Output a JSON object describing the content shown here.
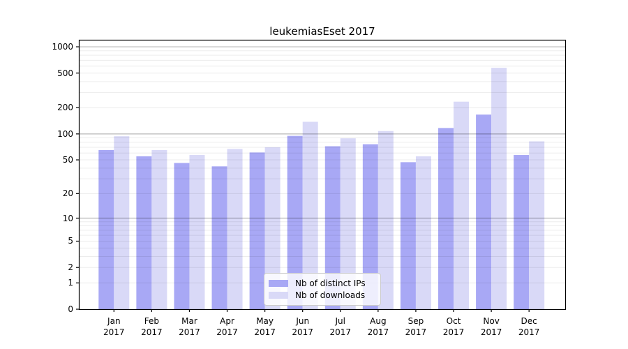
{
  "figure": {
    "background": "#ffffff",
    "text_color": "#000000"
  },
  "chart_data": {
    "type": "bar",
    "title": "leukemiasEset 2017",
    "xlabel": "",
    "ylabel": "",
    "categories": [
      "Jan",
      "Feb",
      "Mar",
      "Apr",
      "May",
      "Jun",
      "Jul",
      "Aug",
      "Sep",
      "Oct",
      "Nov",
      "Dec"
    ],
    "category_year": "2017",
    "series": [
      {
        "name": "Nb of distinct IPs",
        "color": "#a8a8f5",
        "values": [
          65,
          55,
          46,
          42,
          61,
          95,
          72,
          76,
          47,
          117,
          167,
          57
        ]
      },
      {
        "name": "Nb of downloads",
        "color": "#d9d9f7",
        "values": [
          94,
          65,
          57,
          67,
          70,
          138,
          89,
          108,
          55,
          235,
          575,
          82
        ]
      }
    ],
    "yscale": "log1p",
    "ylim": [
      0,
      1000
    ],
    "yticks": [
      0,
      1,
      2,
      5,
      10,
      20,
      50,
      100,
      200,
      500,
      1000
    ],
    "major_gridlines": [
      10,
      100,
      1000
    ],
    "minor_gridlines": [
      1,
      2,
      3,
      4,
      5,
      6,
      7,
      8,
      9,
      20,
      30,
      40,
      50,
      60,
      70,
      80,
      90,
      200,
      300,
      400,
      500,
      600,
      700,
      800,
      900
    ],
    "grid": true,
    "legend": {
      "position": "lower center",
      "labels": [
        "Nb of distinct IPs",
        "Nb of downloads"
      ]
    },
    "colors": {
      "minor_grid": "rgba(0,0,0,0.075)",
      "major_grid": "rgba(0,0,0,0.28)",
      "spine": "#000000"
    }
  }
}
